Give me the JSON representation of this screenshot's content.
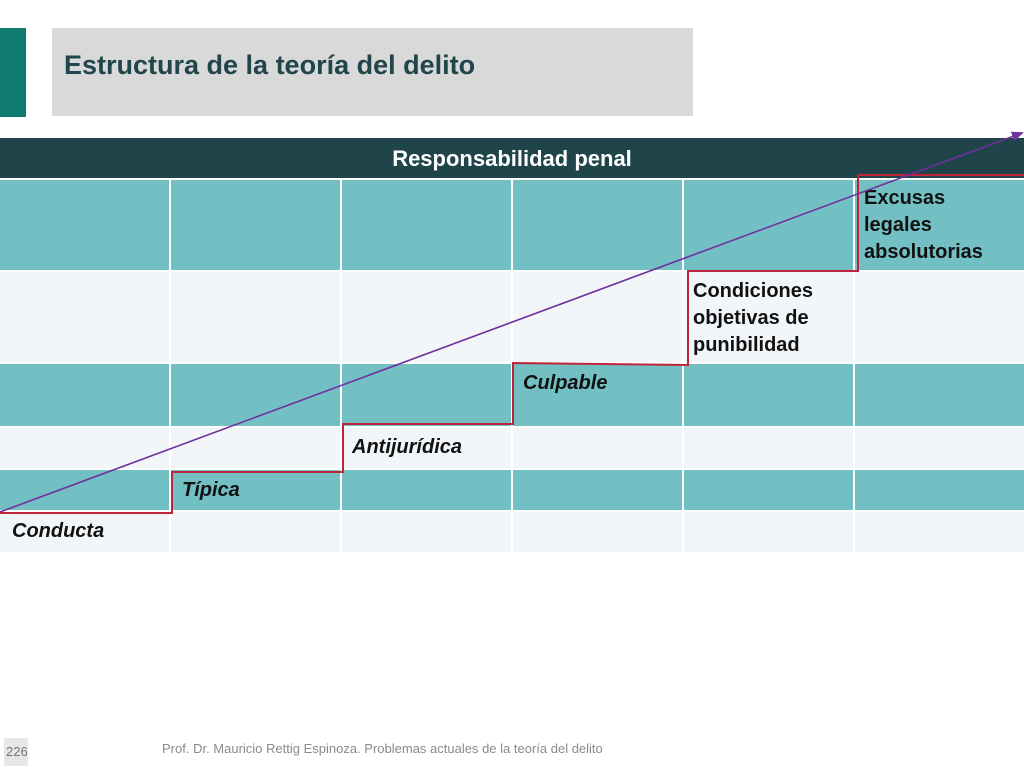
{
  "slide": {
    "title": "Estructura de la teoría del delito",
    "header": "Responsabilidad penal",
    "steps": [
      {
        "label_lines": [
          "Conducta"
        ],
        "italic": true
      },
      {
        "label_lines": [
          "Típica"
        ],
        "italic": true
      },
      {
        "label_lines": [
          "Antijurídica"
        ],
        "italic": true
      },
      {
        "label_lines": [
          "Culpable"
        ],
        "italic": true
      },
      {
        "label_lines": [
          "Condiciones",
          "objetivas de",
          "punibilidad"
        ],
        "italic": false
      },
      {
        "label_lines": [
          "Excusas",
          "legales",
          "absolutorias"
        ],
        "italic": false
      }
    ],
    "page_number": "226",
    "footer": "Prof. Dr. Mauricio Rettig Espinoza. Problemas actuales de la teoría del delito"
  },
  "colors": {
    "accent": "#0f7b6f",
    "header_band": "#1f454b",
    "cell_dark": "#72bfc4",
    "cell_light": "#f2f6f9",
    "stair_line": "#c0243a",
    "arrow": "#7030a0"
  }
}
